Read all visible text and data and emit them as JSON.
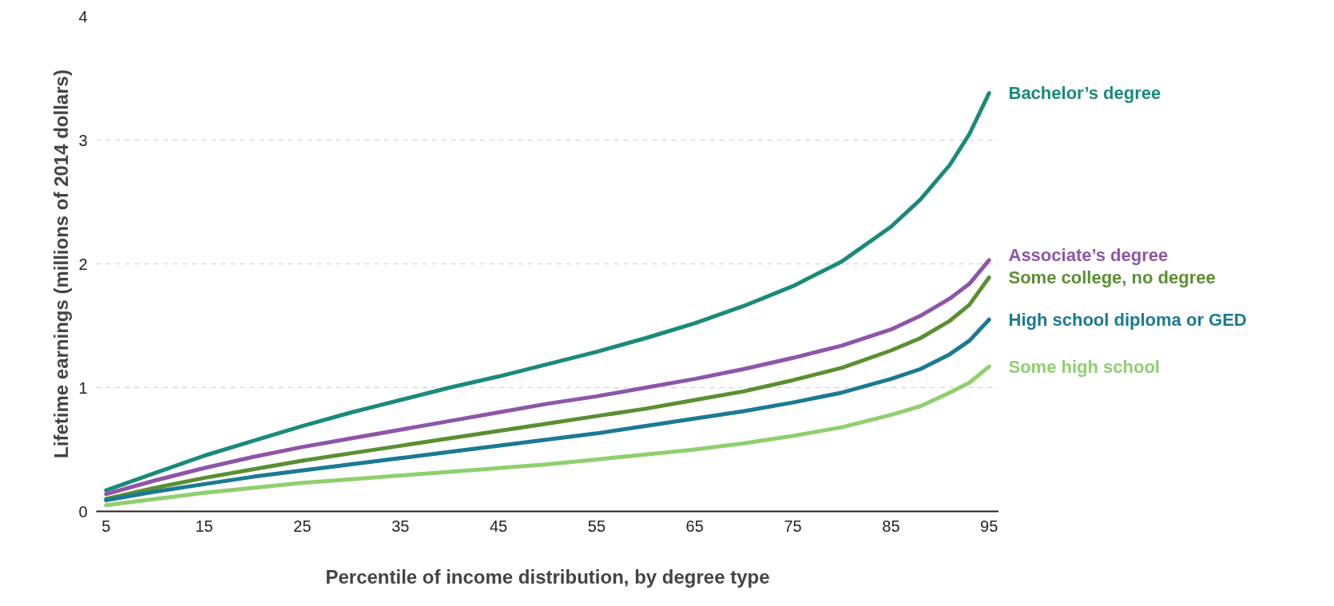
{
  "chart_data": {
    "type": "line",
    "xlabel": "Percentile of income distribution, by degree type",
    "ylabel": "Lifetime earnings (millions of 2014 dollars)",
    "x": [
      5,
      10,
      15,
      20,
      25,
      30,
      35,
      40,
      45,
      50,
      55,
      60,
      65,
      70,
      75,
      80,
      85,
      88,
      91,
      93,
      95
    ],
    "xlim": [
      4,
      96
    ],
    "xticks": [
      5,
      15,
      25,
      35,
      45,
      55,
      65,
      75,
      85,
      95
    ],
    "ylim": [
      0,
      4
    ],
    "yticks": [
      0,
      1,
      2,
      3,
      4
    ],
    "grid": "y",
    "legend": false,
    "marker": "none",
    "line_style": "solid",
    "series": [
      {
        "name": "Bachelor’s degree",
        "color": "#1a8a7a",
        "values": [
          0.17,
          0.31,
          0.45,
          0.57,
          0.69,
          0.8,
          0.9,
          1.0,
          1.09,
          1.19,
          1.29,
          1.4,
          1.52,
          1.66,
          1.82,
          2.02,
          2.3,
          2.52,
          2.8,
          3.05,
          3.38
        ]
      },
      {
        "name": "Associate’s degree",
        "color": "#8e55a8",
        "values": [
          0.14,
          0.25,
          0.35,
          0.44,
          0.52,
          0.59,
          0.66,
          0.73,
          0.8,
          0.87,
          0.93,
          1.0,
          1.07,
          1.15,
          1.24,
          1.34,
          1.47,
          1.58,
          1.72,
          1.84,
          2.03
        ]
      },
      {
        "name": "Some college, no degree",
        "color": "#5a8f32",
        "values": [
          0.1,
          0.19,
          0.27,
          0.34,
          0.41,
          0.47,
          0.53,
          0.59,
          0.65,
          0.71,
          0.77,
          0.83,
          0.9,
          0.97,
          1.06,
          1.16,
          1.3,
          1.4,
          1.54,
          1.67,
          1.89
        ]
      },
      {
        "name": "High school diploma or GED",
        "color": "#1a7a92",
        "values": [
          0.09,
          0.16,
          0.22,
          0.28,
          0.33,
          0.38,
          0.43,
          0.48,
          0.53,
          0.58,
          0.63,
          0.69,
          0.75,
          0.81,
          0.88,
          0.96,
          1.07,
          1.15,
          1.27,
          1.38,
          1.55
        ]
      },
      {
        "name": "Some high school",
        "color": "#8fcf6e",
        "values": [
          0.05,
          0.1,
          0.15,
          0.19,
          0.23,
          0.26,
          0.29,
          0.32,
          0.35,
          0.38,
          0.42,
          0.46,
          0.5,
          0.55,
          0.61,
          0.68,
          0.78,
          0.85,
          0.96,
          1.04,
          1.17
        ]
      }
    ]
  }
}
